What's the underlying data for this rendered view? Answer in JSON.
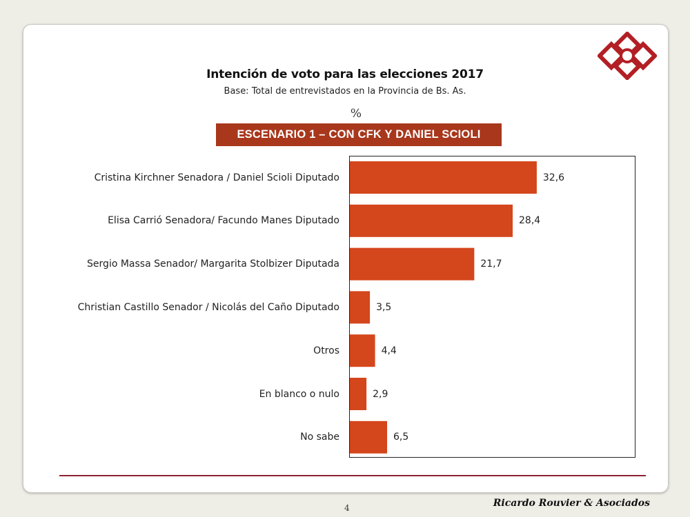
{
  "chart_data": {
    "type": "bar",
    "orientation": "horizontal",
    "title": "Intención de voto para las elecciones 2017",
    "subtitle": "Base: Total de entrevistados en la Provincia de Bs. As.",
    "unit_label": "%",
    "scenario": "ESCENARIO 1 – CON CFK Y DANIEL SCIOLI",
    "categories": [
      "Cristina Kirchner Senadora / Daniel Scioli Diputado",
      "Elisa Carrió Senadora/ Facundo Manes Diputado",
      "Sergio Massa Senador/ Margarita Stolbizer Diputada",
      "Christian Castillo Senador / Nicolás del Caño Diputado",
      "Otros",
      "En blanco o nulo",
      "No sabe"
    ],
    "values": [
      32.6,
      28.4,
      21.7,
      3.5,
      4.4,
      2.9,
      6.5
    ],
    "value_labels": [
      "32,6",
      "28,4",
      "21,7",
      "3,5",
      "4,4",
      "2,9",
      "6,5"
    ],
    "xlim": [
      0,
      50
    ],
    "bar_color": "#d4461c",
    "grid": false,
    "legend": "none"
  },
  "footer": {
    "page_number": "4",
    "brand": "Ricardo Rouvier & Asociados"
  },
  "colors": {
    "banner": "#a8371c",
    "divider": "#8e2133",
    "logo": "#b21f24"
  }
}
